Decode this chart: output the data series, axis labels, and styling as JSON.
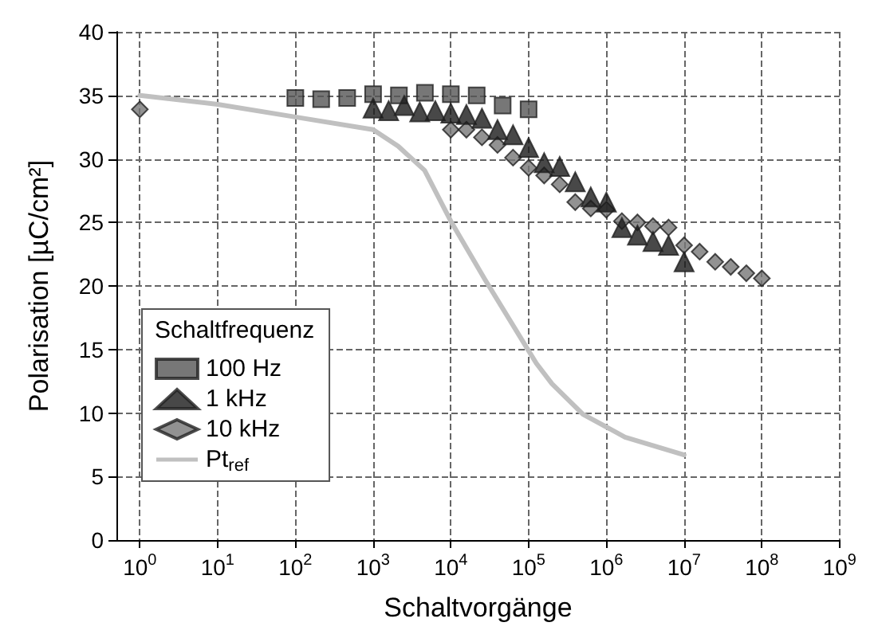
{
  "chart_data": {
    "type": "scatter",
    "xlabel": "Schaltvorgänge",
    "ylabel": "Polarisation [µC/cm²]",
    "legend_title": "Schaltfrequenz",
    "legend": "bottom left",
    "grid": true,
    "log": "x",
    "xlim": [
      0.5,
      1000000000
    ],
    "ylim": [
      0,
      40
    ],
    "xticks": [
      {
        "value": 1,
        "label": "10$^{0}$"
      },
      {
        "value": 10,
        "label": "10$^{1}$"
      },
      {
        "value": 100,
        "label": "10$^{2}$"
      },
      {
        "value": 1000,
        "label": "10$^{3}$"
      },
      {
        "value": 10000,
        "label": "10$^{4}$"
      },
      {
        "value": 100000,
        "label": "10$^{5}$"
      },
      {
        "value": 1000000,
        "label": "10$^{6}$"
      },
      {
        "value": 10000000,
        "label": "10$^{7}$"
      },
      {
        "value": 100000000,
        "label": "10$^{8}$"
      },
      {
        "value": 1000000000,
        "label": "10$^{9}$"
      }
    ],
    "yticks": [
      0,
      5,
      10,
      15,
      20,
      25,
      30,
      35,
      40
    ],
    "series": [
      {
        "name": "100 Hz",
        "color": "#555555",
        "marker": "square",
        "x": [
          100,
          215,
          464,
          1000,
          2150,
          4640,
          10000,
          21500,
          46400,
          100000
        ],
        "values": [
          34.8,
          34.7,
          34.8,
          35.1,
          35,
          35.2,
          35.1,
          35,
          34.2,
          33.9
        ]
      },
      {
        "name": "1 kHz",
        "color": "#1a1a1a",
        "marker": "triangle",
        "x": [
          1000,
          1585,
          2512,
          3981,
          6310,
          10000,
          15850,
          25120,
          39810,
          63100,
          100000,
          158500,
          251200,
          398100,
          631000,
          1000000,
          1585000,
          2512000,
          3981000,
          6310000,
          10000000
        ],
        "values": [
          34,
          33.8,
          34.2,
          33.7,
          33.8,
          33.6,
          33.5,
          33.2,
          32.3,
          31.9,
          30.9,
          29.7,
          29.4,
          28.2,
          27,
          26.6,
          24.6,
          24,
          23.5,
          23.2,
          21.9
        ]
      },
      {
        "name": "10 kHz",
        "color": "#777777",
        "marker": "diamond",
        "x": [
          1,
          10000,
          15850,
          25120,
          39810,
          63100,
          100000,
          158500,
          251200,
          398100,
          631000,
          1000000,
          1585000,
          2512000,
          3981000,
          6310000,
          10000000,
          15850000,
          25120000,
          39810000,
          63100000,
          100000000
        ],
        "values": [
          33.9,
          32.3,
          32.3,
          31.7,
          31.1,
          30.1,
          29.3,
          28.7,
          28,
          26.6,
          26.1,
          26,
          25.1,
          25,
          24.7,
          24.6,
          23.2,
          22.7,
          21.9,
          21.5,
          21,
          20.6
        ]
      },
      {
        "name": "Pt$_{ref}$",
        "type": "line",
        "color": "#c0c0c0",
        "marker": "none",
        "line_style": "solid",
        "x": [
          1,
          10,
          100,
          1000,
          2100,
          4600,
          10000,
          27500,
          100000,
          126000,
          200000,
          500000,
          1740000,
          10000000
        ],
        "values": [
          35,
          34.3,
          33.3,
          32.3,
          31,
          29.1,
          25.1,
          20.5,
          14.9,
          13.9,
          12.3,
          9.9,
          8.1,
          6.7
        ]
      }
    ]
  }
}
